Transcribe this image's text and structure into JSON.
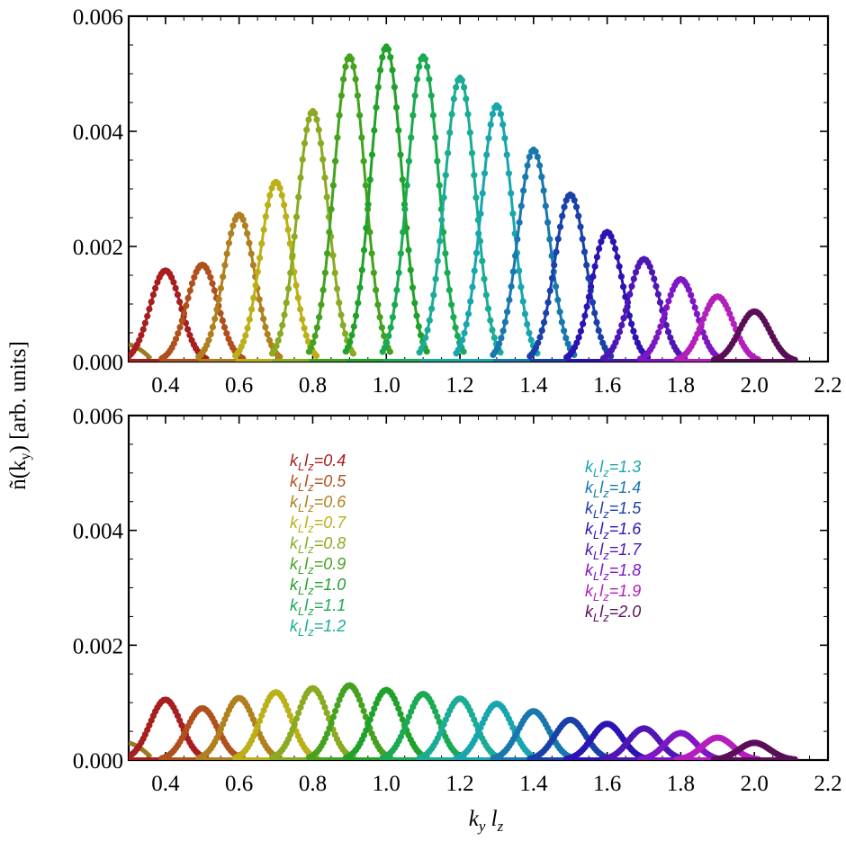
{
  "chart_data": {
    "type": "line",
    "x_label": "k_y l_z",
    "y_label": "ñ(k_y) [arb. units]",
    "xlim": [
      0.3,
      2.2
    ],
    "ylim": [
      0,
      0.006
    ],
    "x_ticks": [
      "0.4",
      "0.6",
      "0.8",
      "1.0",
      "1.2",
      "1.4",
      "1.6",
      "1.8",
      "2.0",
      "2.2"
    ],
    "y_ticks": [
      "0.000",
      "0.002",
      "0.004",
      "0.006"
    ],
    "series_colors": [
      "#a81e1e",
      "#b0501c",
      "#b0801e",
      "#bcb019",
      "#8aaa22",
      "#44a21e",
      "#20a22a",
      "#1aaa52",
      "#1aac94",
      "#18a6ae",
      "#1878ae",
      "#1a40aa",
      "#2a14b4",
      "#4e16b4",
      "#7e16c4",
      "#b41ebc",
      "#5a0e58"
    ],
    "legend": {
      "left": [
        "k_L l_z=0.4",
        "k_L l_z=0.5",
        "k_L l_z=0.6",
        "k_L l_z=0.7",
        "k_L l_z=0.8",
        "k_L l_z=0.9",
        "k_L l_z=1.0",
        "k_L l_z=1.1",
        "k_L l_z=1.2"
      ],
      "right": [
        "k_L l_z=1.3",
        "k_L l_z=1.4",
        "k_L l_z=1.5",
        "k_L l_z=1.6",
        "k_L l_z=1.7",
        "k_L l_z=1.8",
        "k_L l_z=1.9",
        "k_L l_z=2.0"
      ]
    },
    "panels": [
      {
        "name": "top",
        "centers": [
          0.4,
          0.5,
          0.6,
          0.7,
          0.8,
          0.9,
          1.0,
          1.1,
          1.2,
          1.3,
          1.4,
          1.5,
          1.6,
          1.7,
          1.8,
          1.9,
          2.0
        ],
        "peaks": [
          0.00158,
          0.00168,
          0.00255,
          0.00312,
          0.00435,
          0.0053,
          0.00547,
          0.0053,
          0.00493,
          0.00445,
          0.00368,
          0.0029,
          0.00225,
          0.00178,
          0.00143,
          0.00113,
          0.00087
        ]
      },
      {
        "name": "bottom",
        "centers": [
          0.4,
          0.5,
          0.6,
          0.7,
          0.8,
          0.9,
          1.0,
          1.1,
          1.2,
          1.3,
          1.4,
          1.5,
          1.6,
          1.7,
          1.8,
          1.9,
          2.0
        ],
        "peaks": [
          0.00105,
          0.0009,
          0.00108,
          0.00118,
          0.00125,
          0.0013,
          0.00122,
          0.00115,
          0.00107,
          0.00098,
          0.00085,
          0.0007,
          0.00063,
          0.00055,
          0.00047,
          0.00039,
          0.0003
        ]
      }
    ]
  }
}
